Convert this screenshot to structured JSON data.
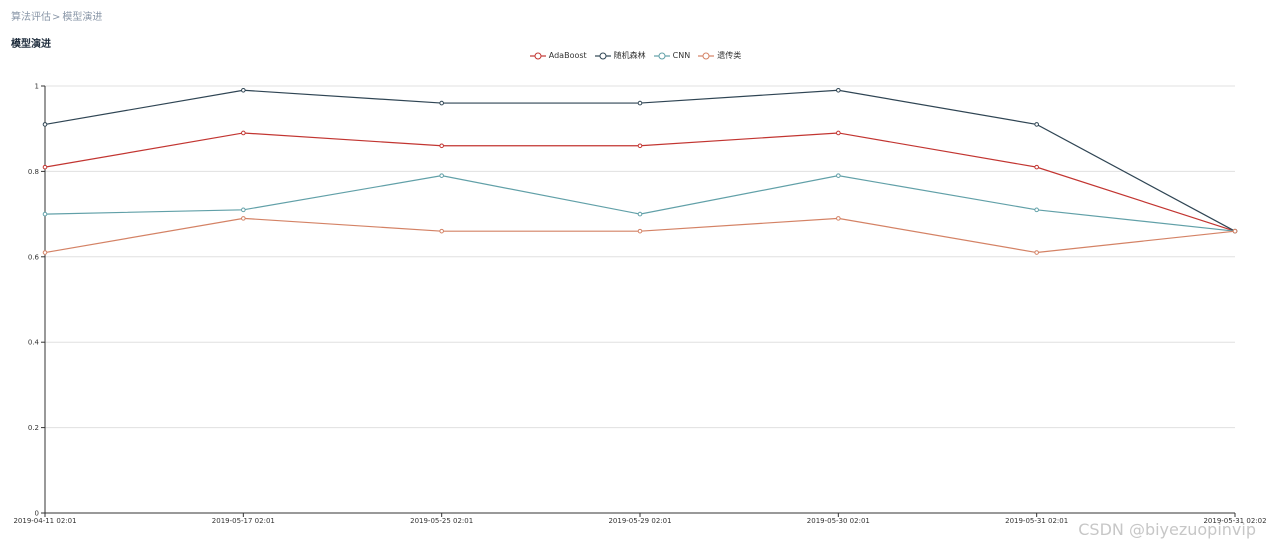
{
  "breadcrumb": {
    "parent": "算法评估",
    "separator": ">",
    "current": "模型演进"
  },
  "page_title": "模型演进",
  "watermark": "CSDN @biyezuopinvip",
  "chart_data": {
    "type": "line",
    "title": "",
    "xlabel": "",
    "ylabel": "",
    "ylim": [
      0,
      1
    ],
    "yticks": [
      0,
      0.2,
      0.4,
      0.6,
      0.8,
      1
    ],
    "grid": true,
    "legend_position": "top-center",
    "x": [
      "2019-04-11 02:01",
      "2019-05-17 02:01",
      "2019-05-25 02:01",
      "2019-05-29 02:01",
      "2019-05-30 02:01",
      "2019-05-31 02:01",
      "2019-05-31 02:02"
    ],
    "series": [
      {
        "name": "AdaBoost",
        "color": "#c23531",
        "values": [
          0.81,
          0.89,
          0.86,
          0.86,
          0.89,
          0.81,
          0.66
        ]
      },
      {
        "name": "随机森林",
        "color": "#2f4554",
        "values": [
          0.91,
          0.99,
          0.96,
          0.96,
          0.99,
          0.91,
          0.66
        ]
      },
      {
        "name": "CNN",
        "color": "#61a0a8",
        "values": [
          0.7,
          0.71,
          0.79,
          0.7,
          0.79,
          0.71,
          0.66
        ]
      },
      {
        "name": "遗传类",
        "color": "#d48265",
        "values": [
          0.61,
          0.69,
          0.66,
          0.66,
          0.69,
          0.61,
          0.66
        ]
      }
    ]
  }
}
